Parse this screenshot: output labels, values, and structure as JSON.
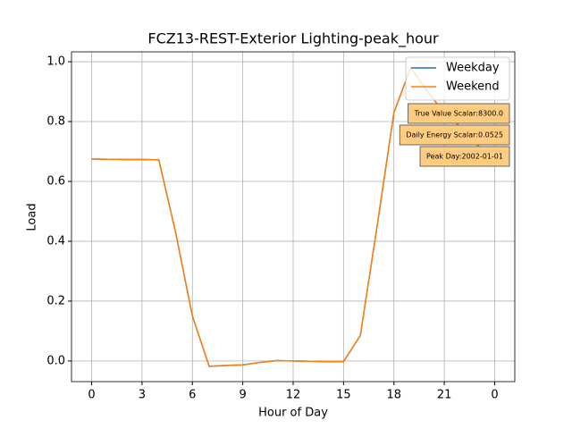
{
  "chart_data": {
    "type": "line",
    "title": "FCZ13-REST-Exterior Lighting-peak_hour",
    "x_label": "Hour of Day",
    "y_label": "Load",
    "x": [
      0,
      1,
      2,
      3,
      4,
      5,
      6,
      7,
      8,
      9,
      10,
      11,
      12,
      13,
      14,
      15,
      16,
      17,
      18,
      19,
      20,
      21,
      22,
      23,
      24
    ],
    "series": [
      {
        "name": "Weekday",
        "color": "#1f77b4",
        "values": [
          0.675,
          0.674,
          0.673,
          0.673,
          0.672,
          0.43,
          0.15,
          -0.018,
          -0.015,
          -0.013,
          -0.005,
          0.001,
          0.0,
          -0.001,
          -0.002,
          -0.002,
          0.085,
          0.45,
          0.83,
          0.98,
          0.9,
          0.83,
          0.78,
          0.72,
          0.675
        ]
      },
      {
        "name": "Weekend",
        "color": "#ff7f0e",
        "values": [
          0.675,
          0.674,
          0.673,
          0.673,
          0.672,
          0.43,
          0.15,
          -0.018,
          -0.015,
          -0.013,
          -0.005,
          0.001,
          0.0,
          -0.001,
          -0.002,
          -0.002,
          0.085,
          0.45,
          0.83,
          0.98,
          0.9,
          0.83,
          0.78,
          0.72,
          0.675
        ]
      }
    ],
    "xlim": [
      -1.2,
      25.2
    ],
    "xticks": [
      0,
      3,
      6,
      9,
      12,
      15,
      18,
      21,
      {
        "value": 24,
        "label": "0"
      }
    ],
    "ylim": [
      -0.069,
      1.033
    ],
    "yticks": [
      {
        "value": 0,
        "label": "0.0"
      },
      0.2,
      0.4,
      0.6,
      0.8,
      {
        "value": 1,
        "label": "1.0"
      }
    ],
    "grid": true,
    "legend": "upper right",
    "annotations": [
      "True Value Scalar:8300.0",
      "Daily Energy Scalar:0.0525",
      "Peak Day:2002-01-01"
    ],
    "annotation_color": "#ffcc80"
  }
}
